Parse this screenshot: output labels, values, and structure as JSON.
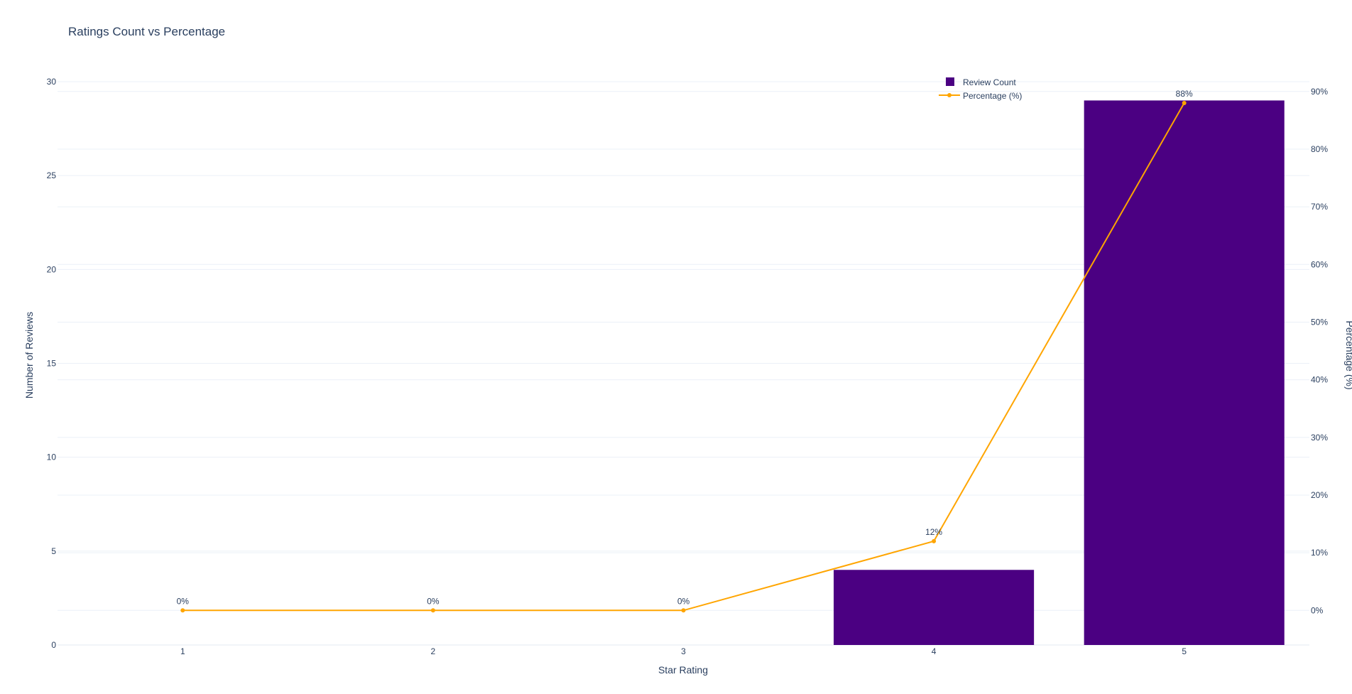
{
  "chart_data": {
    "type": "bar",
    "title": "Ratings Count vs Percentage",
    "xlabel": "Star Rating",
    "ylabel": "Number of Reviews",
    "y2label": "Percentage (%)",
    "categories": [
      "1",
      "2",
      "3",
      "4",
      "5"
    ],
    "series": [
      {
        "name": "Review Count",
        "type": "bar",
        "axis": "left",
        "values": [
          0,
          0,
          0,
          4,
          29
        ],
        "color": "#4b0082"
      },
      {
        "name": "Percentage (%)",
        "type": "line",
        "axis": "right",
        "values": [
          0,
          0,
          0,
          12,
          88
        ],
        "labels": [
          "0%",
          "0%",
          "0%",
          "12%",
          "88%"
        ],
        "color": "#ffa500"
      }
    ],
    "ylim": [
      0,
      30
    ],
    "yticks": [
      0,
      5,
      10,
      15,
      20,
      25,
      30
    ],
    "y2lim": [
      -6,
      91.7
    ],
    "y2ticks": [
      0,
      10,
      20,
      30,
      40,
      50,
      60,
      70,
      80,
      90
    ],
    "y2ticklabels": [
      "0%",
      "10%",
      "20%",
      "30%",
      "40%",
      "50%",
      "60%",
      "70%",
      "80%",
      "90%"
    ],
    "legend_position": "top-right",
    "grid": true,
    "background": "#ffffff",
    "gridcolor": "#ebf0f8"
  }
}
